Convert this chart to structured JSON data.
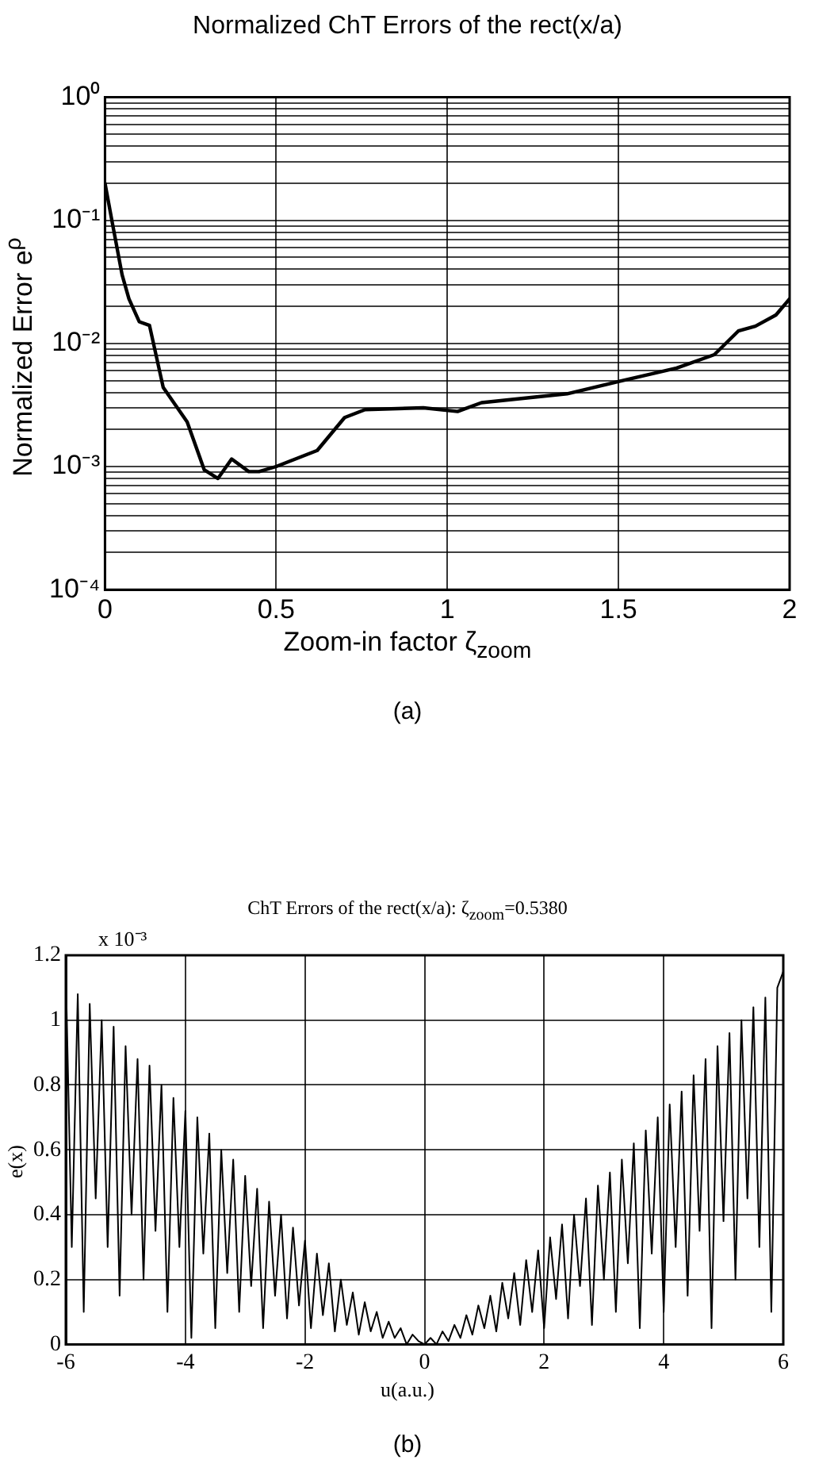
{
  "chart_data": [
    {
      "type": "line",
      "title": "Normalized ChT Errors of the  rect(x/a)",
      "xlabel": "Zoom-in factor ζ$_{zoom}$",
      "ylabel": "Normalized Error e$^{ρ}$",
      "annotations": [
        "(a)"
      ],
      "log": "y",
      "grid": true,
      "marker": "none",
      "line_style": "solid",
      "legend": false,
      "xlim": [
        0,
        2
      ],
      "xticks": [
        0,
        0.5,
        1,
        1.5,
        2
      ],
      "ylim": [
        0.0001,
        1
      ],
      "yticks": [
        {
          "value": 0.0001,
          "label": "10⁻⁴"
        },
        {
          "value": 0.0002,
          "label": null
        },
        {
          "value": 0.0003,
          "label": null
        },
        {
          "value": 0.0004,
          "label": null
        },
        {
          "value": 0.0005,
          "label": null
        },
        {
          "value": 0.0006,
          "label": null
        },
        {
          "value": 0.0007,
          "label": null
        },
        {
          "value": 0.0008,
          "label": null
        },
        {
          "value": 0.0009,
          "label": null
        },
        {
          "value": 0.001,
          "label": "10⁻³"
        },
        {
          "value": 0.002,
          "label": null
        },
        {
          "value": 0.003,
          "label": null
        },
        {
          "value": 0.004,
          "label": null
        },
        {
          "value": 0.005,
          "label": null
        },
        {
          "value": 0.006,
          "label": null
        },
        {
          "value": 0.007,
          "label": null
        },
        {
          "value": 0.008,
          "label": null
        },
        {
          "value": 0.009,
          "label": null
        },
        {
          "value": 0.01,
          "label": "10⁻²"
        },
        {
          "value": 0.02,
          "label": null
        },
        {
          "value": 0.03,
          "label": null
        },
        {
          "value": 0.04,
          "label": null
        },
        {
          "value": 0.05,
          "label": null
        },
        {
          "value": 0.06,
          "label": null
        },
        {
          "value": 0.07,
          "label": null
        },
        {
          "value": 0.08,
          "label": null
        },
        {
          "value": 0.09,
          "label": null
        },
        {
          "value": 0.1,
          "label": "10⁻¹"
        },
        {
          "value": 0.2,
          "label": null
        },
        {
          "value": 0.3,
          "label": null
        },
        {
          "value": 0.4,
          "label": null
        },
        {
          "value": 0.5,
          "label": null
        },
        {
          "value": 0.6,
          "label": null
        },
        {
          "value": 0.7,
          "label": null
        },
        {
          "value": 0.8,
          "label": null
        },
        {
          "value": 0.9,
          "label": null
        },
        {
          "value": 1,
          "label": "10⁰"
        }
      ],
      "series": [
        {
          "color": "#000000",
          "x": [
            0,
            0.02,
            0.05,
            0.07,
            0.1,
            0.13,
            0.17,
            0.24,
            0.29,
            0.33,
            0.37,
            0.42,
            0.45,
            0.5,
            0.62,
            0.7,
            0.76,
            0.93,
            1.03,
            1.1,
            1.35,
            1.5,
            1.67,
            1.78,
            1.85,
            1.9,
            1.96,
            2
          ],
          "values": [
            0.2,
            0.1,
            0.036,
            0.023,
            0.015,
            0.014,
            0.0044,
            0.0023,
            0.00094,
            0.0008,
            0.00115,
            0.00091,
            0.00091,
            0.001,
            0.00135,
            0.0025,
            0.0029,
            0.003,
            0.0028,
            0.0033,
            0.0039,
            0.0049,
            0.0063,
            0.0081,
            0.0126,
            0.0138,
            0.017,
            0.023
          ]
        }
      ]
    },
    {
      "type": "line",
      "title": "ChT Errors of the  rect(x/a): ζ$_{zoom}$=0.5380",
      "xlabel": "u(a.u.)",
      "ylabel": "e(x)",
      "annotations": [
        "x 10⁻³",
        "(b)"
      ],
      "grid": true,
      "marker": "none",
      "line_style": "solid",
      "legend": false,
      "xlim": [
        -6,
        6
      ],
      "xticks": [
        -6,
        -4,
        -2,
        0,
        2,
        4,
        6
      ],
      "ylim": [
        0,
        1.2
      ],
      "yticks": [
        0,
        0.2,
        0.4,
        0.6,
        0.8,
        1,
        1.2
      ],
      "series": [
        {
          "color": "#000000",
          "x": [
            -6,
            -5.9,
            -5.8,
            -5.7,
            -5.6,
            -5.5,
            -5.4,
            -5.3,
            -5.2,
            -5.1,
            -5,
            -4.9,
            -4.8,
            -4.7,
            -4.6,
            -4.5,
            -4.4,
            -4.3,
            -4.2,
            -4.1,
            -4,
            -3.9,
            -3.8,
            -3.7,
            -3.6,
            -3.5,
            -3.4,
            -3.3,
            -3.2,
            -3.1,
            -3,
            -2.9,
            -2.8,
            -2.7,
            -2.6,
            -2.5,
            -2.4,
            -2.3,
            -2.2,
            -2.1,
            -2,
            -1.9,
            -1.8,
            -1.7,
            -1.6,
            -1.5,
            -1.4,
            -1.3,
            -1.2,
            -1.1,
            -1,
            -0.9,
            -0.8,
            -0.7,
            -0.6,
            -0.5,
            -0.4,
            -0.3,
            -0.2,
            -0.1,
            0,
            0.1,
            0.2,
            0.3,
            0.4,
            0.5,
            0.6,
            0.7,
            0.8,
            0.9,
            1,
            1.1,
            1.2,
            1.3,
            1.4,
            1.5,
            1.6,
            1.7,
            1.8,
            1.9,
            2,
            2.1,
            2.2,
            2.3,
            2.4,
            2.5,
            2.6,
            2.7,
            2.8,
            2.9,
            3,
            3.1,
            3.2,
            3.3,
            3.4,
            3.5,
            3.6,
            3.7,
            3.8,
            3.9,
            4,
            4.1,
            4.2,
            4.3,
            4.4,
            4.5,
            4.6,
            4.7,
            4.8,
            4.9,
            5,
            5.1,
            5.2,
            5.3,
            5.4,
            5.5,
            5.6,
            5.7,
            5.8,
            5.9,
            6
          ],
          "values": [
            1.15,
            0.3,
            1.08,
            0.1,
            1.05,
            0.45,
            1,
            0.3,
            0.98,
            0.15,
            0.92,
            0.4,
            0.88,
            0.2,
            0.86,
            0.35,
            0.8,
            0.1,
            0.76,
            0.3,
            0.72,
            0.02,
            0.7,
            0.28,
            0.65,
            0.05,
            0.6,
            0.22,
            0.57,
            0.1,
            0.52,
            0.18,
            0.48,
            0.05,
            0.44,
            0.15,
            0.4,
            0.08,
            0.36,
            0.12,
            0.32,
            0.05,
            0.28,
            0.09,
            0.25,
            0.04,
            0.2,
            0.06,
            0.16,
            0.03,
            0.13,
            0.04,
            0.1,
            0.02,
            0.07,
            0.02,
            0.05,
            0,
            0.03,
            0.01,
            0,
            0.02,
            0,
            0.04,
            0.01,
            0.06,
            0.02,
            0.09,
            0.03,
            0.12,
            0.05,
            0.15,
            0.04,
            0.19,
            0.08,
            0.22,
            0.06,
            0.26,
            0.1,
            0.29,
            0.05,
            0.33,
            0.14,
            0.37,
            0.08,
            0.4,
            0.18,
            0.45,
            0.06,
            0.49,
            0.2,
            0.53,
            0.1,
            0.57,
            0.25,
            0.62,
            0.05,
            0.66,
            0.28,
            0.7,
            0.1,
            0.74,
            0.3,
            0.78,
            0.15,
            0.83,
            0.35,
            0.88,
            0.05,
            0.92,
            0.38,
            0.96,
            0.2,
            1,
            0.45,
            1.04,
            0.3,
            1.07,
            0.1,
            1.1,
            1.15
          ]
        }
      ]
    }
  ]
}
